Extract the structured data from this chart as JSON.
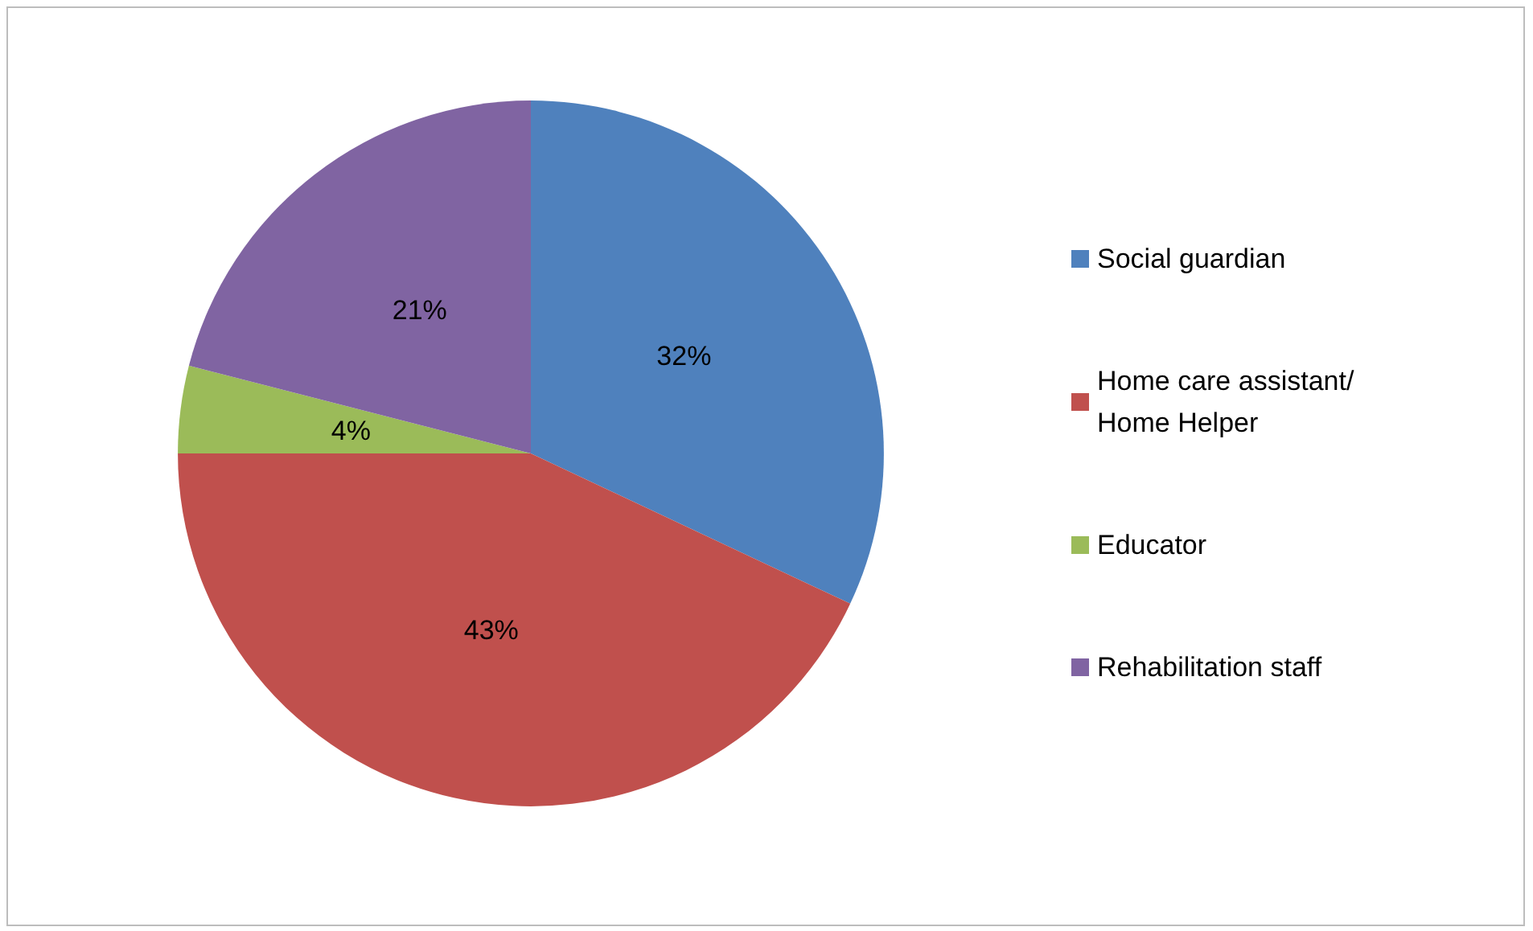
{
  "chart_data": {
    "type": "pie",
    "categories": [
      "Social guardian",
      "Home care assistant/Home Helper",
      "Educator",
      "Rehabilitation staff"
    ],
    "values": [
      32,
      43,
      4,
      21
    ],
    "colors": [
      "#4f81bd",
      "#c0504d",
      "#9bbb59",
      "#8064a2"
    ],
    "value_labels": [
      "32%",
      "43%",
      "4%",
      "21%"
    ],
    "legend": "right"
  }
}
